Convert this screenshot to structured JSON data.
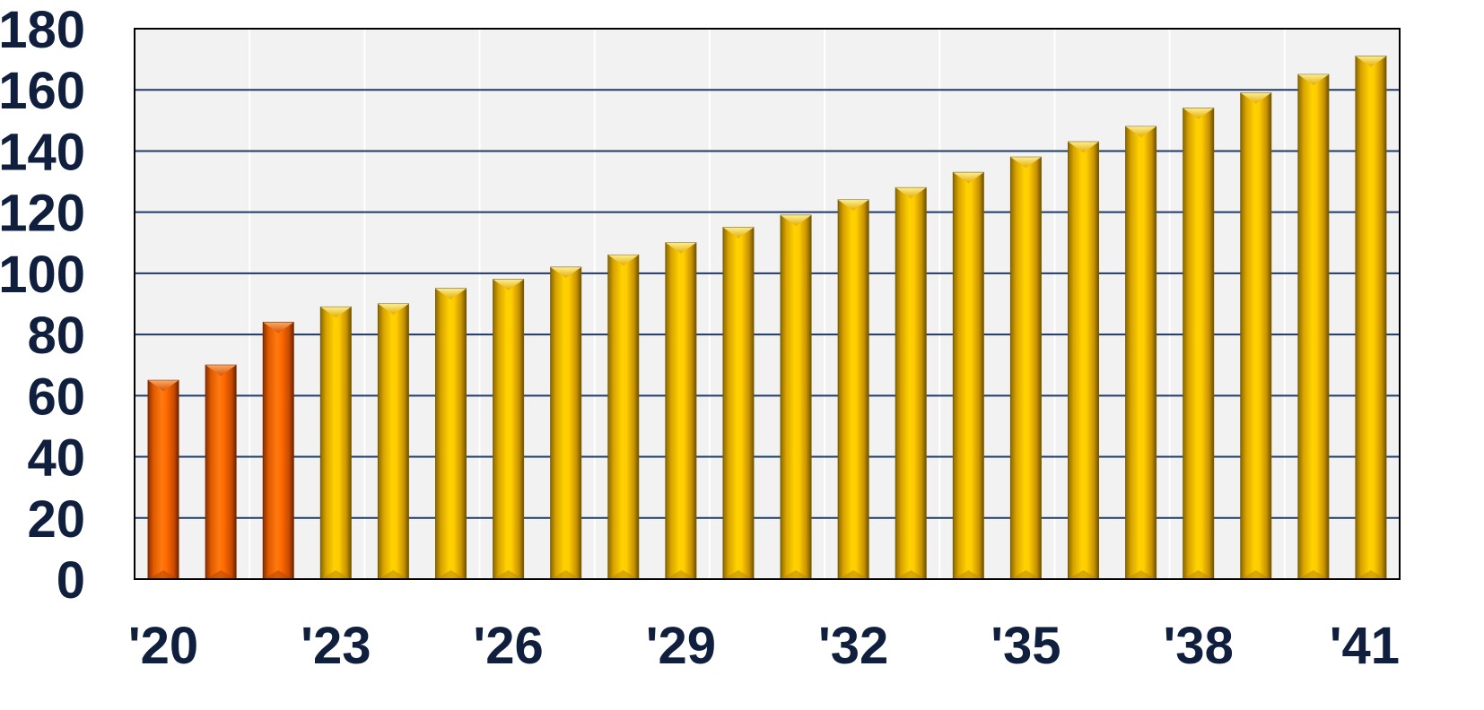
{
  "chart_data": {
    "type": "bar",
    "title": "",
    "xlabel": "",
    "ylabel": "",
    "ylim": [
      0,
      180
    ],
    "yticks": [
      "0",
      "20",
      "40",
      "60",
      "80",
      "100",
      "120",
      "140",
      "160",
      "180"
    ],
    "xtick_labels": [
      {
        "index": 0,
        "label": "'20"
      },
      {
        "index": 3,
        "label": "'23"
      },
      {
        "index": 6,
        "label": "'26"
      },
      {
        "index": 9,
        "label": "'29"
      },
      {
        "index": 12,
        "label": "'32"
      },
      {
        "index": 15,
        "label": "'35"
      },
      {
        "index": 18,
        "label": "'38"
      },
      {
        "index": 21,
        "label": "'41"
      }
    ],
    "categories": [
      "2020",
      "2021",
      "2022",
      "2023",
      "2024",
      "2025",
      "2026",
      "2027",
      "2028",
      "2029",
      "2030",
      "2031",
      "2032",
      "2033",
      "2034",
      "2035",
      "2036",
      "2037",
      "2038",
      "2039",
      "2040",
      "2041"
    ],
    "values": [
      65,
      70,
      84,
      89,
      90,
      95,
      98,
      102,
      106,
      110,
      115,
      119,
      124,
      128,
      133,
      138,
      143,
      148,
      154,
      159,
      165,
      171
    ],
    "bar_groups": [
      "actual",
      "actual",
      "actual",
      "forecast",
      "forecast",
      "forecast",
      "forecast",
      "forecast",
      "forecast",
      "forecast",
      "forecast",
      "forecast",
      "forecast",
      "forecast",
      "forecast",
      "forecast",
      "forecast",
      "forecast",
      "forecast",
      "forecast",
      "forecast",
      "forecast"
    ],
    "grid": true,
    "legend": "none",
    "colors": {
      "actual": "#ff6a00",
      "forecast": "#ffc400",
      "plot_background": "#f2f2f2",
      "horizontal_grid": "#1f3a66",
      "vertical_grid": "#ffffff",
      "text": "#0f1f3d"
    }
  }
}
